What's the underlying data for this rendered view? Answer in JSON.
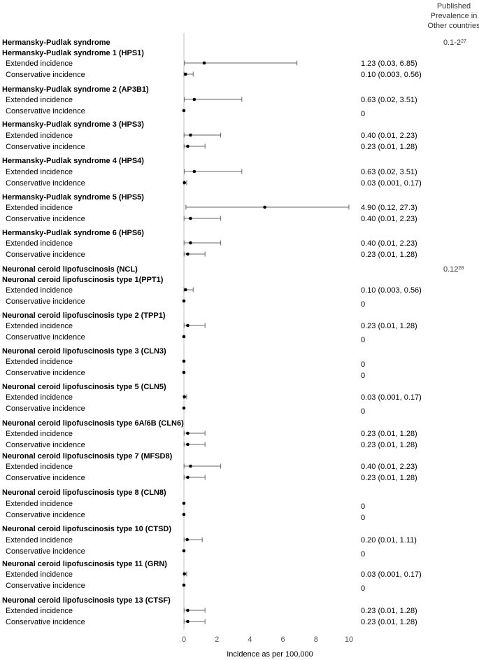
{
  "chart_data": {
    "type": "forest",
    "xlabel": "Incidence as per 100,000",
    "xlim": [
      0,
      10
    ],
    "xticks": [
      0,
      2,
      4,
      6,
      8,
      10
    ],
    "column_header": "Published Prevalence in Other countries",
    "header_lines": [
      "Published",
      "Prevalence in",
      "Other countries"
    ],
    "rows": [
      {
        "kind": "group",
        "label": "Hermansky-Pudlak syndrome",
        "published": "0.1-2",
        "published_ref": "27"
      },
      {
        "kind": "head",
        "label": "Hermansky-Pudlak syndrome 1 (HPS1)"
      },
      {
        "kind": "est",
        "label": "Extended incidence",
        "est": 1.23,
        "lo": 0.03,
        "hi": 6.85,
        "text": "1.23 (0.03, 6.85)"
      },
      {
        "kind": "est",
        "label": "Conservative incidence",
        "est": 0.1,
        "lo": 0.003,
        "hi": 0.56,
        "text": "0.10 (0.003, 0.56)"
      },
      {
        "kind": "head",
        "label": "Hermansky-Pudlak syndrome 2 (AP3B1)"
      },
      {
        "kind": "est",
        "label": "Extended incidence",
        "est": 0.63,
        "lo": 0.02,
        "hi": 3.51,
        "text": "0.63 (0.02, 3.51)"
      },
      {
        "kind": "est",
        "label": "Conservative incidence",
        "est": 0,
        "lo": 0,
        "hi": 0,
        "text": "0"
      },
      {
        "kind": "head",
        "label": "Hermansky-Pudlak syndrome 3 (HPS3)"
      },
      {
        "kind": "est",
        "label": "Extended incidence",
        "est": 0.4,
        "lo": 0.01,
        "hi": 2.23,
        "text": "0.40 (0.01, 2.23)"
      },
      {
        "kind": "est",
        "label": "Conservative incidence",
        "est": 0.23,
        "lo": 0.01,
        "hi": 1.28,
        "text": "0.23 (0.01, 1.28)"
      },
      {
        "kind": "head",
        "label": "Hermansky-Pudlak syndrome 4 (HPS4)"
      },
      {
        "kind": "est",
        "label": "Extended incidence",
        "est": 0.63,
        "lo": 0.02,
        "hi": 3.51,
        "text": "0.63 (0.02, 3.51)"
      },
      {
        "kind": "est",
        "label": "Conservative incidence",
        "est": 0.03,
        "lo": 0.001,
        "hi": 0.17,
        "text": "0.03 (0.001, 0.17)"
      },
      {
        "kind": "head",
        "label": "Hermansky-Pudlak syndrome 5 (HPS5)"
      },
      {
        "kind": "est",
        "label": "Extended incidence",
        "est": 4.9,
        "lo": 0.12,
        "hi": 27.3,
        "text": "4.90 (0.12, 27.3)"
      },
      {
        "kind": "est",
        "label": "Conservative incidence",
        "est": 0.4,
        "lo": 0.01,
        "hi": 2.23,
        "text": "0.40 (0.01, 2.23)"
      },
      {
        "kind": "head",
        "label": "Hermansky-Pudlak syndrome 6 (HPS6)"
      },
      {
        "kind": "est",
        "label": "Extended incidence",
        "est": 0.4,
        "lo": 0.01,
        "hi": 2.23,
        "text": "0.40 (0.01, 2.23)"
      },
      {
        "kind": "est",
        "label": "Conservative incidence",
        "est": 0.23,
        "lo": 0.01,
        "hi": 1.28,
        "text": "0.23 (0.01, 1.28)"
      },
      {
        "kind": "group",
        "label": "Neuronal ceroid lipofuscinosis (NCL)",
        "published": "0.12",
        "published_ref": "28"
      },
      {
        "kind": "head",
        "label": "Neuronal ceroid lipofuscinosis type 1(PPT1)"
      },
      {
        "kind": "est",
        "label": "Extended incidence",
        "est": 0.1,
        "lo": 0.003,
        "hi": 0.56,
        "text": "0.10 (0.003, 0.56)"
      },
      {
        "kind": "est",
        "label": "Conservative incidence",
        "est": 0,
        "lo": 0,
        "hi": 0,
        "text": "0"
      },
      {
        "kind": "head",
        "label": "Neuronal ceroid lipofuscinosis type 2 (TPP1)"
      },
      {
        "kind": "est",
        "label": "Extended incidence",
        "est": 0.23,
        "lo": 0.01,
        "hi": 1.28,
        "text": "0.23 (0.01, 1.28)"
      },
      {
        "kind": "est",
        "label": "Conservative incidence",
        "est": 0,
        "lo": 0,
        "hi": 0,
        "text": "0"
      },
      {
        "kind": "head",
        "label": "Neuronal ceroid lipofuscinosis type 3 (CLN3)"
      },
      {
        "kind": "est",
        "label": "Extended incidence",
        "est": 0,
        "lo": 0,
        "hi": 0,
        "text": "0"
      },
      {
        "kind": "est",
        "label": "Conservative incidence",
        "est": 0,
        "lo": 0,
        "hi": 0,
        "text": "0"
      },
      {
        "kind": "head",
        "label": "Neuronal ceroid lipofuscinosis type 5 (CLN5)"
      },
      {
        "kind": "est",
        "label": "Extended incidence",
        "est": 0.03,
        "lo": 0.001,
        "hi": 0.17,
        "text": "0.03 (0.001, 0.17)"
      },
      {
        "kind": "est",
        "label": "Conservative incidence",
        "est": 0,
        "lo": 0,
        "hi": 0,
        "text": "0"
      },
      {
        "kind": "head",
        "label": "Neuronal ceroid lipofuscinosis type 6A/6B (CLN6)"
      },
      {
        "kind": "est",
        "label": "Extended incidence",
        "est": 0.23,
        "lo": 0.01,
        "hi": 1.28,
        "text": "0.23 (0.01, 1.28)"
      },
      {
        "kind": "est",
        "label": "Conservative incidence",
        "est": 0.23,
        "lo": 0.01,
        "hi": 1.28,
        "text": "0.23 (0.01, 1.28)"
      },
      {
        "kind": "head",
        "label": "Neuronal ceroid lipofuscinosis type 7 (MFSD8)"
      },
      {
        "kind": "est",
        "label": "Extended incidence",
        "est": 0.4,
        "lo": 0.01,
        "hi": 2.23,
        "text": "0.40 (0.01, 2.23)"
      },
      {
        "kind": "est",
        "label": "Conservative incidence",
        "est": 0.23,
        "lo": 0.01,
        "hi": 1.28,
        "text": "0.23 (0.01, 1.28)"
      },
      {
        "kind": "head",
        "label": "Neuronal ceroid lipofuscinosis type 8 (CLN8)"
      },
      {
        "kind": "est",
        "label": "Extended incidence",
        "est": 0,
        "lo": 0,
        "hi": 0,
        "text": "0"
      },
      {
        "kind": "est",
        "label": "Conservative incidence",
        "est": 0,
        "lo": 0,
        "hi": 0,
        "text": "0"
      },
      {
        "kind": "head",
        "label": "Neuronal ceroid lipofuscinosis type 10 (CTSD)"
      },
      {
        "kind": "est",
        "label": "Extended incidence",
        "est": 0.2,
        "lo": 0.01,
        "hi": 1.11,
        "text": "0.20 (0.01, 1.11)"
      },
      {
        "kind": "est",
        "label": "Conservative incidence",
        "est": 0,
        "lo": 0,
        "hi": 0,
        "text": "0"
      },
      {
        "kind": "head",
        "label": "Neuronal ceroid lipofuscinosis type 11 (GRN)"
      },
      {
        "kind": "est",
        "label": "Extended incidence",
        "est": 0.03,
        "lo": 0.001,
        "hi": 0.17,
        "text": "0.03 (0.001, 0.17)"
      },
      {
        "kind": "est",
        "label": "Conservative incidence",
        "est": 0,
        "lo": 0,
        "hi": 0,
        "text": "0"
      },
      {
        "kind": "head",
        "label": "Neuronal ceroid lipofuscinosis type 13 (CTSF)"
      },
      {
        "kind": "est",
        "label": "Extended incidence",
        "est": 0.23,
        "lo": 0.01,
        "hi": 1.28,
        "text": "0.23 (0.01, 1.28)"
      },
      {
        "kind": "est",
        "label": "Conservative incidence",
        "est": 0.23,
        "lo": 0.01,
        "hi": 1.28,
        "text": "0.23 (0.01, 1.28)"
      }
    ],
    "colors": {
      "marker": "#000000",
      "whisker": "#666666",
      "axis": "#bfbfbf",
      "tick_label": "#555555"
    }
  }
}
